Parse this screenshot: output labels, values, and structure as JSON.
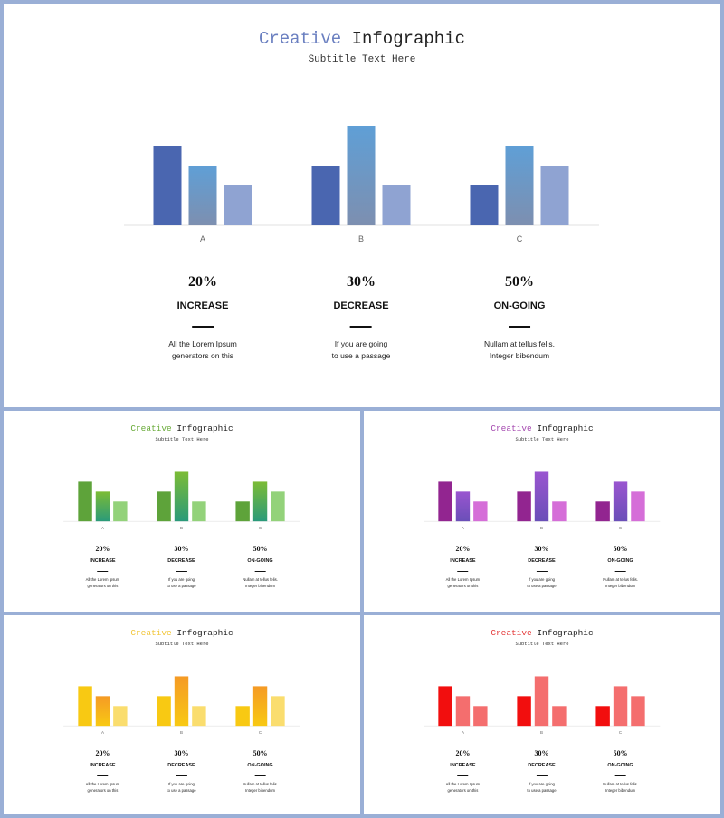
{
  "slides": [
    {
      "id": "main",
      "title_accent": "Creative",
      "title_rest": "Infographic",
      "subtitle": "Subtitle Text Here",
      "colors": {
        "accent": "#6a7fc0",
        "bar1": "#4a66b0",
        "bar2_top": "#5f9fd6",
        "bar2_bottom": "#7d8fb0",
        "bar3": "#8fa3d2"
      }
    },
    {
      "id": "green",
      "title_accent": "Creative",
      "title_rest": "Infographic",
      "subtitle": "Subtitle Text Here",
      "colors": {
        "accent": "#6aab3a",
        "bar1": "#5ea33a",
        "bar2_top": "#7cbc35",
        "bar2_bottom": "#2a9a7a",
        "bar3": "#93d27a"
      }
    },
    {
      "id": "purple",
      "title_accent": "Creative",
      "title_rest": "Infographic",
      "subtitle": "Subtitle Text Here",
      "colors": {
        "accent": "#a54ab0",
        "bar1": "#922590",
        "bar2_top": "#9a55d0",
        "bar2_bottom": "#6a4fb8",
        "bar3": "#d56ed8"
      }
    },
    {
      "id": "yellow",
      "title_accent": "Creative",
      "title_rest": "Infographic",
      "subtitle": "Subtitle Text Here",
      "colors": {
        "accent": "#f2c63a",
        "bar1": "#f8c913",
        "bar2_top": "#f59a25",
        "bar2_bottom": "#f8c913",
        "bar3": "#fadd6e"
      }
    },
    {
      "id": "red",
      "title_accent": "Creative",
      "title_rest": "Infographic",
      "subtitle": "Subtitle Text Here",
      "colors": {
        "accent": "#e53b3b",
        "bar1": "#f20e0e",
        "bar2_top": "#f46e6e",
        "bar2_bottom": "#f46e6e",
        "bar3": "#f46e6e"
      }
    }
  ],
  "stats": [
    {
      "value": "20%",
      "label": "INCREASE",
      "desc_line1": "All the Lorem Ipsum",
      "desc_line2": "generators on this"
    },
    {
      "value": "30%",
      "label": "DECREASE",
      "desc_line1": "If you are going",
      "desc_line2": "to use a passage"
    },
    {
      "value": "50%",
      "label": "ON-GOING",
      "desc_line1": "Nullam at tellus felis.",
      "desc_line2": "Integer bibendum"
    }
  ],
  "chart_data": {
    "type": "bar",
    "categories": [
      "A",
      "B",
      "C"
    ],
    "series": [
      {
        "values": [
          4,
          3,
          2
        ]
      },
      {
        "values": [
          3,
          5,
          4
        ]
      },
      {
        "values": [
          2,
          2,
          3
        ]
      }
    ],
    "ylim": [
      0,
      5
    ],
    "grid": false,
    "legend": "none",
    "gridline_color": "#e0e0e0",
    "tick_color": "#666666"
  }
}
